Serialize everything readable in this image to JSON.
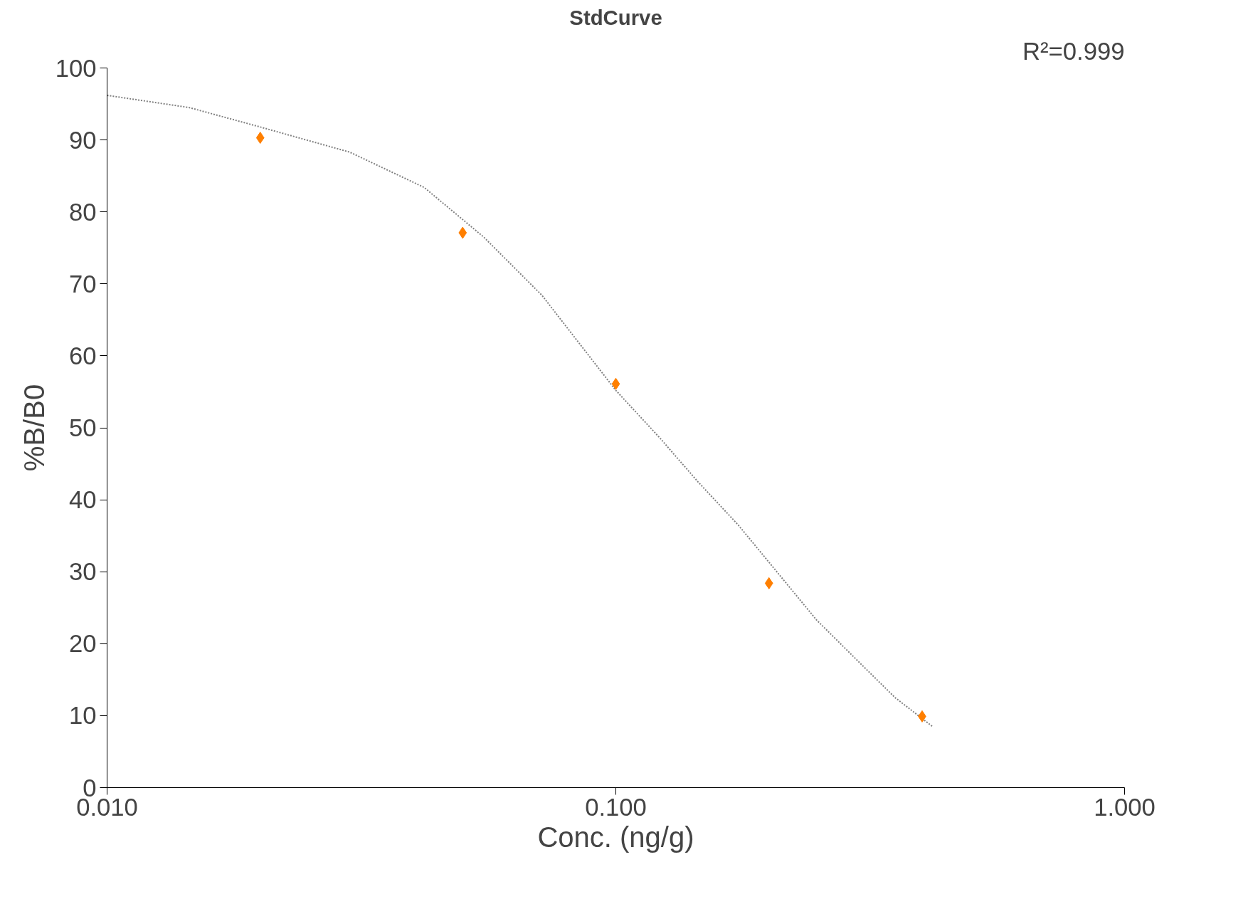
{
  "chart_data": {
    "type": "scatter",
    "title": "StdCurve",
    "xlabel": "Conc. (ng/g)",
    "ylabel": "%B/B0",
    "annotations": [
      "R²=0.999"
    ],
    "log": "x",
    "xlim": [
      0.01,
      1
    ],
    "ylim": [
      0,
      100
    ],
    "xticks": [
      {
        "value": 0.01,
        "label": "0.010"
      },
      {
        "value": 0.1,
        "label": "0.100"
      },
      {
        "value": 1,
        "label": "1.000"
      }
    ],
    "yticks": [
      0,
      10,
      20,
      30,
      40,
      50,
      60,
      70,
      80,
      90,
      100
    ],
    "grid": false,
    "series": [
      {
        "type": "line",
        "marker": "none",
        "line_style": "dotted",
        "color": "#808080",
        "x": [
          0.01,
          0.0145,
          0.02,
          0.03,
          0.042,
          0.055,
          0.0716,
          0.1,
          0.122,
          0.145,
          0.174,
          0.21,
          0.248,
          0.3,
          0.354,
          0.419
        ],
        "values": [
          96.2,
          94.5,
          91.8,
          88.3,
          83.4,
          76.5,
          68.4,
          55.2,
          48.6,
          42.5,
          36.5,
          29.5,
          23.3,
          17.5,
          12.5,
          8.5
        ]
      },
      {
        "marker": "diamond",
        "color": "#ff7f00",
        "x": [
          0.02,
          0.05,
          0.1,
          0.2,
          0.4
        ],
        "values": [
          90.3,
          77.1,
          56.1,
          28.4,
          9.9
        ]
      }
    ]
  }
}
